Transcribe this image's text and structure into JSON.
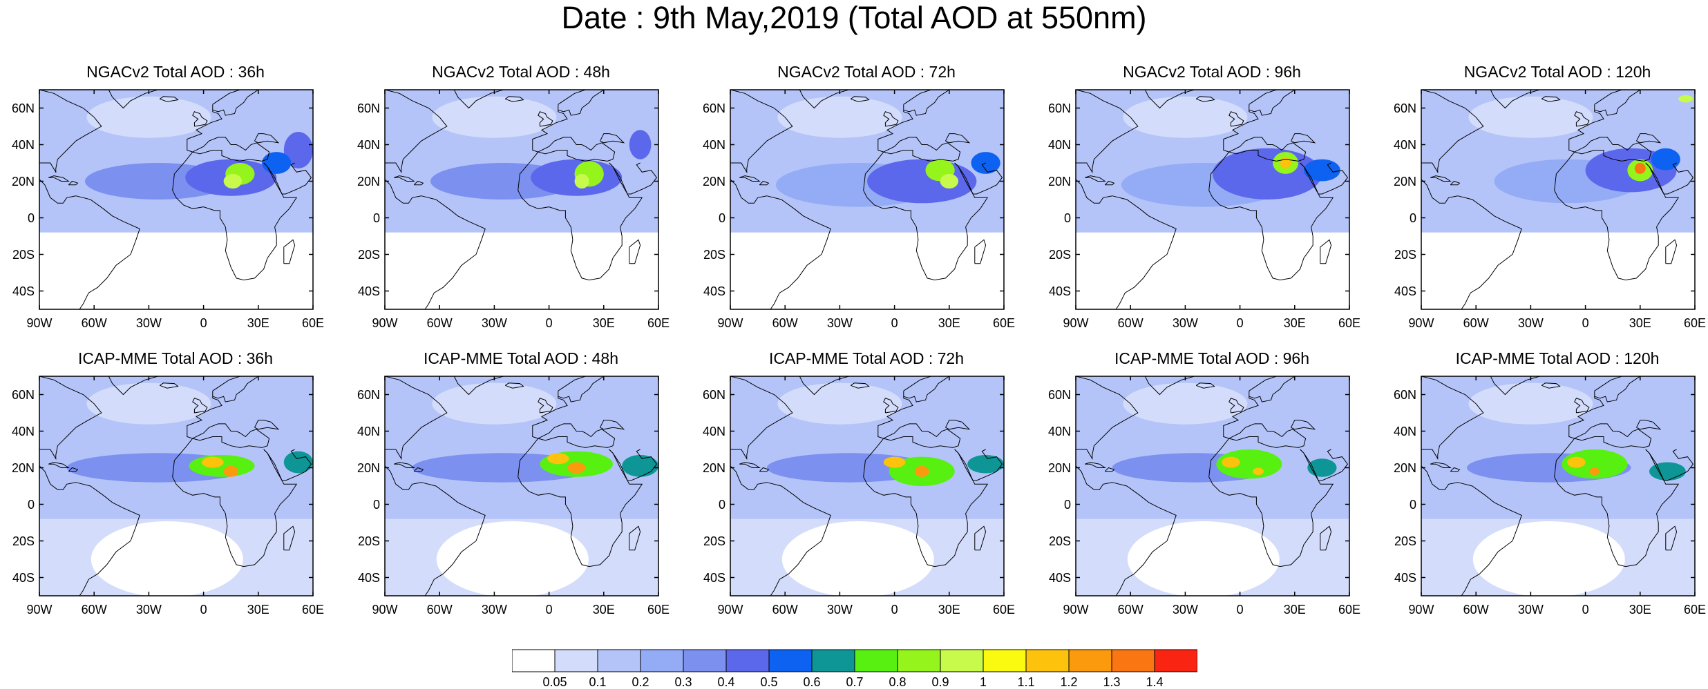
{
  "title": "Date : 9th May,2019 (Total AOD at 550nm)",
  "panels": [
    {
      "title": "NGACv2 Total AOD : 36h",
      "model": "NGACv2",
      "lead": "36h"
    },
    {
      "title": "NGACv2 Total AOD : 48h",
      "model": "NGACv2",
      "lead": "48h"
    },
    {
      "title": "NGACv2 Total AOD : 72h",
      "model": "NGACv2",
      "lead": "72h"
    },
    {
      "title": "NGACv2 Total AOD : 96h",
      "model": "NGACv2",
      "lead": "96h"
    },
    {
      "title": "NGACv2 Total AOD : 120h",
      "model": "NGACv2",
      "lead": "120h"
    },
    {
      "title": "ICAP-MME Total AOD : 36h",
      "model": "ICAP-MME",
      "lead": "36h"
    },
    {
      "title": "ICAP-MME Total AOD : 48h",
      "model": "ICAP-MME",
      "lead": "48h"
    },
    {
      "title": "ICAP-MME Total AOD : 72h",
      "model": "ICAP-MME",
      "lead": "72h"
    },
    {
      "title": "ICAP-MME Total AOD : 96h",
      "model": "ICAP-MME",
      "lead": "96h"
    },
    {
      "title": "ICAP-MME Total AOD : 120h",
      "model": "ICAP-MME",
      "lead": "120h"
    }
  ],
  "map_extent": {
    "lon_min": -90,
    "lon_max": 60,
    "lat_min": -50,
    "lat_max": 70
  },
  "lat_ticks": [
    {
      "value": 60,
      "label": "60N"
    },
    {
      "value": 40,
      "label": "40N"
    },
    {
      "value": 20,
      "label": "20N"
    },
    {
      "value": 0,
      "label": "0"
    },
    {
      "value": -20,
      "label": "20S"
    },
    {
      "value": -40,
      "label": "40S"
    }
  ],
  "lon_ticks": [
    {
      "value": -90,
      "label": "90W"
    },
    {
      "value": -60,
      "label": "60W"
    },
    {
      "value": -30,
      "label": "30W"
    },
    {
      "value": 0,
      "label": "0"
    },
    {
      "value": 30,
      "label": "30E"
    },
    {
      "value": 60,
      "label": "60E"
    }
  ],
  "colorbar": {
    "labels": [
      "0.05",
      "0.1",
      "0.2",
      "0.3",
      "0.4",
      "0.5",
      "0.6",
      "0.7",
      "0.8",
      "0.9",
      "1",
      "1.1",
      "1.2",
      "1.3",
      "1.4"
    ],
    "colors": [
      "#ffffff",
      "#d3dcfa",
      "#b4c4f8",
      "#94acf6",
      "#7c90f0",
      "#5c68ec",
      "#0e62f2",
      "#0e9696",
      "#58f010",
      "#94f41c",
      "#c8fa4c",
      "#fafa10",
      "#fcc20c",
      "#fc9a0e",
      "#fa7612",
      "#fa2412"
    ]
  },
  "background_color": "#b4c4f8"
}
